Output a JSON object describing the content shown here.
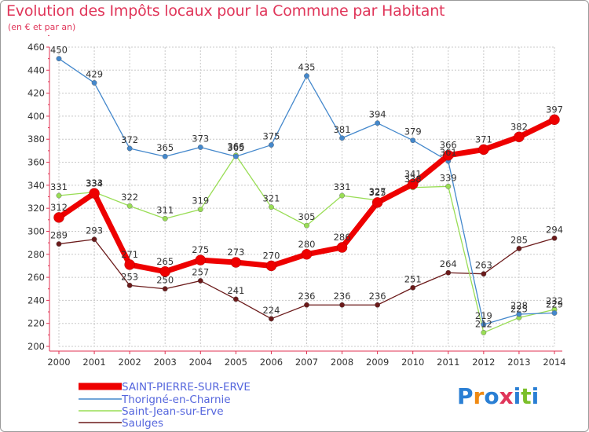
{
  "chart_data": {
    "type": "line",
    "title": "Evolution des Impôts locaux pour la Commune par Habitant",
    "subtitle": "(en € et par an)",
    "xlabel": "",
    "ylabel": "",
    "ylim": [
      200,
      460
    ],
    "yticks": [
      200,
      220,
      240,
      260,
      280,
      300,
      320,
      340,
      360,
      380,
      400,
      420,
      440,
      460
    ],
    "categories": [
      "2000",
      "2001",
      "2002",
      "2003",
      "2004",
      "2005",
      "2006",
      "2007",
      "2008",
      "2009",
      "2010",
      "2011",
      "2012",
      "2013",
      "2014"
    ],
    "grid": true,
    "legend": "bottom-left",
    "series": [
      {
        "name": "Saulges",
        "color": "#6b1a1a",
        "values": [
          289,
          293,
          253,
          250,
          257,
          241,
          224,
          236,
          236,
          236,
          251,
          264,
          263,
          285,
          294
        ]
      },
      {
        "name": "Saint-Jean-sur-Erve",
        "color": "#99dd55",
        "values": [
          331,
          334,
          322,
          311,
          319,
          366,
          321,
          305,
          331,
          327,
          338,
          339,
          212,
          225,
          232
        ]
      },
      {
        "name": "Thorigné-en-Charnie",
        "color": "#4488cc",
        "values": [
          450,
          429,
          372,
          365,
          373,
          365,
          375,
          435,
          381,
          394,
          379,
          361,
          219,
          228,
          229
        ]
      },
      {
        "name": "SAINT-PIERRE-SUR-ERVE",
        "color": "#ee0000",
        "values": [
          312,
          333,
          271,
          265,
          275,
          273,
          270,
          280,
          286,
          325,
          341,
          366,
          371,
          382,
          397
        ]
      }
    ]
  },
  "legend": {
    "items": [
      {
        "label": "SAINT-PIERRE-SUR-ERVE"
      },
      {
        "label": "Thorigné-en-Charnie"
      },
      {
        "label": "Saint-Jean-sur-Erve"
      },
      {
        "label": "Saulges"
      }
    ]
  },
  "logo": {
    "letters": [
      "P",
      "r",
      "o",
      "x",
      "i",
      "t",
      "i"
    ],
    "colors": [
      "#2a7fd4",
      "#f08a12",
      "#2a7fd4",
      "#e0365a",
      "#2a7fd4",
      "#7bbf2a",
      "#2a7fd4"
    ]
  }
}
